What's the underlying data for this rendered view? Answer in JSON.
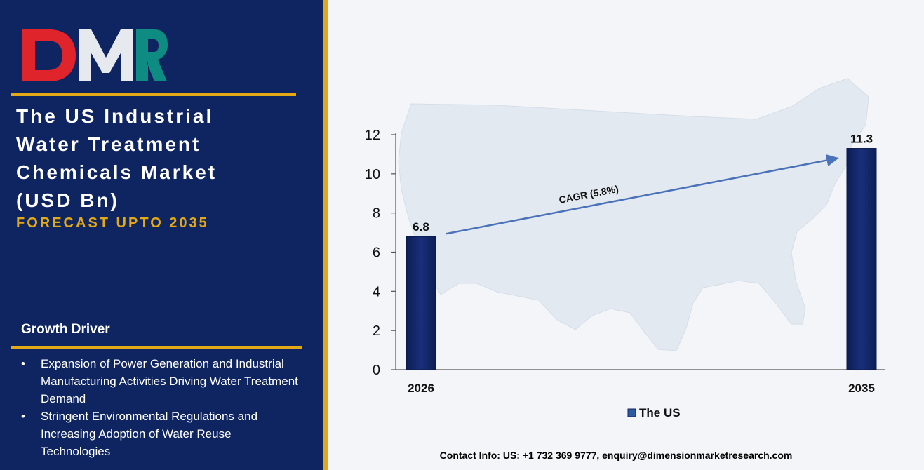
{
  "brand": {
    "logo_text": "DMR"
  },
  "title": {
    "lines": [
      "The US Industrial",
      "Water Treatment",
      "Chemicals Market",
      "(USD Bn)"
    ],
    "subtitle": "FORECAST UPTO 2035"
  },
  "growth_driver": {
    "heading": "Growth Driver",
    "items": [
      "Expansion of Power Generation and Industrial Manufacturing Activities Driving Water Treatment Demand",
      "Stringent Environmental Regulations and Increasing Adoption of Water Reuse Technologies"
    ]
  },
  "contact": "Contact Info: US: +1 732 369 9777, enquiry@dimensionmarketresearch.com",
  "colors": {
    "navy": "#0f2561",
    "gold": "#e2a816",
    "bar": "#13266b",
    "arrow": "#4a72b8"
  },
  "chart_data": {
    "type": "bar",
    "categories": [
      "2026",
      "2035"
    ],
    "series": [
      {
        "name": "The US",
        "values": [
          6.8,
          11.3
        ]
      }
    ],
    "data_labels": [
      "6.8",
      "11.3"
    ],
    "ylim": [
      0,
      12
    ],
    "yticks": [
      0,
      2,
      4,
      6,
      8,
      10,
      12
    ],
    "annotation": "CAGR (5.8%)",
    "legend_position": "bottom",
    "grid": false
  }
}
